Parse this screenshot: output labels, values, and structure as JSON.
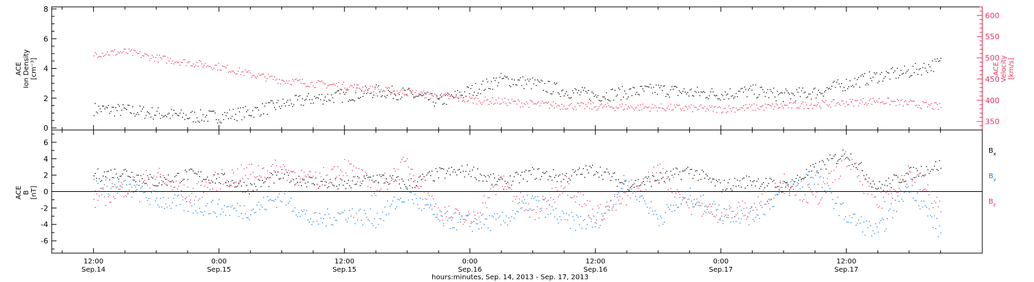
{
  "chart_data": [
    {
      "type": "scatter",
      "panel": "ion-density-velocity",
      "ylabel_left": [
        "ACE",
        "Ion Density",
        "[cm⁻³]"
      ],
      "ylabel_right": [
        "ACE",
        "Velocity",
        "[km/s]"
      ],
      "ylim_left": [
        0,
        8
      ],
      "ylim_right": [
        330,
        620
      ],
      "yticks_left": [
        "0",
        "2",
        "4",
        "6",
        "8"
      ],
      "yticks_right": [
        "350",
        "400",
        "450",
        "500",
        "550",
        "600"
      ],
      "right_axis_color": "#e8365d",
      "series": [
        {
          "color": "#000000",
          "axis": "left",
          "x_hours": [
            0,
            3,
            6,
            9,
            12,
            15,
            18,
            21,
            24,
            27,
            30,
            33,
            36,
            39,
            42,
            45,
            48,
            51,
            54,
            57,
            60,
            63,
            66,
            69,
            72,
            75,
            78,
            81
          ],
          "values": [
            1.3,
            1.2,
            1.0,
            0.8,
            0.8,
            1.1,
            1.6,
            2.0,
            2.2,
            2.5,
            2.3,
            1.8,
            2.5,
            3.3,
            3.0,
            2.5,
            2.2,
            2.4,
            2.6,
            2.4,
            2.3,
            2.5,
            2.2,
            2.4,
            3.0,
            3.5,
            3.8,
            4.4
          ]
        },
        {
          "color": "#e8365d",
          "axis": "right",
          "x_hours": [
            0,
            3,
            6,
            9,
            12,
            15,
            18,
            21,
            24,
            27,
            30,
            33,
            36,
            39,
            42,
            45,
            48,
            51,
            54,
            57,
            60,
            63,
            66,
            69,
            72,
            75,
            78,
            81
          ],
          "values": [
            510,
            515,
            500,
            490,
            480,
            462,
            448,
            440,
            435,
            425,
            420,
            410,
            402,
            398,
            392,
            388,
            386,
            385,
            384,
            382,
            380,
            384,
            387,
            391,
            395,
            400,
            393,
            385
          ]
        }
      ]
    },
    {
      "type": "scatter",
      "panel": "magnetic-field",
      "ylabel": [
        "ACE",
        "B",
        "[nT]"
      ],
      "ylim": [
        -7.5,
        7.5
      ],
      "yticks": [
        "-6",
        "-4",
        "-2",
        "0",
        "2",
        "4",
        "6"
      ],
      "zero_line": true,
      "legend": [
        {
          "name": "B",
          "sub": "x",
          "color": "#000000"
        },
        {
          "name": "B",
          "sub": "y",
          "color": "#1a7fd4"
        },
        {
          "name": "B",
          "sub": "z",
          "color": "#e8365d"
        }
      ],
      "series": [
        {
          "color": "#000000",
          "x_hours": [
            0,
            3,
            6,
            9,
            12,
            15,
            18,
            21,
            24,
            27,
            30,
            33,
            36,
            39,
            42,
            45,
            48,
            51,
            54,
            57,
            60,
            63,
            66,
            69,
            72,
            75,
            78,
            81
          ],
          "values": [
            2.0,
            2.4,
            1.2,
            2.1,
            1.6,
            0.5,
            2.0,
            1.2,
            0.8,
            1.8,
            0.9,
            2.2,
            2.6,
            1.0,
            2.3,
            1.8,
            2.8,
            0.8,
            1.6,
            2.6,
            0.7,
            1.4,
            0.6,
            2.8,
            4.8,
            0.5,
            2.2,
            3.3
          ]
        },
        {
          "color": "#1a7fd4",
          "x_hours": [
            0,
            3,
            6,
            9,
            12,
            15,
            18,
            21,
            24,
            27,
            30,
            33,
            36,
            39,
            42,
            45,
            48,
            51,
            54,
            57,
            60,
            63,
            66,
            69,
            72,
            75,
            78,
            81
          ],
          "values": [
            0.8,
            0.5,
            -1.0,
            -1.6,
            -2.0,
            -2.3,
            -0.5,
            -3.6,
            -2.6,
            -3.3,
            -0.2,
            -3.3,
            -3.8,
            -3.6,
            -1.0,
            -3.5,
            -3.8,
            1.5,
            -3.2,
            -0.6,
            -2.5,
            -3.0,
            0.2,
            2.0,
            -3.0,
            -5.0,
            1.0,
            -5.0
          ]
        },
        {
          "color": "#e8365d",
          "x_hours": [
            0,
            3,
            6,
            9,
            12,
            15,
            18,
            21,
            24,
            27,
            30,
            33,
            36,
            39,
            42,
            45,
            48,
            51,
            54,
            57,
            60,
            63,
            66,
            69,
            72,
            75,
            78,
            81
          ],
          "values": [
            -1.0,
            0.5,
            2.0,
            -0.5,
            1.5,
            2.4,
            2.8,
            1.2,
            3.2,
            0.3,
            3.5,
            -2.5,
            -3.5,
            1.5,
            -3.0,
            1.2,
            -2.8,
            -0.8,
            2.6,
            -1.5,
            -2.7,
            -2.0,
            1.5,
            -1.0,
            4.0,
            -1.5,
            2.5,
            -2.0
          ]
        }
      ]
    }
  ],
  "x_axis": {
    "range_hours": [
      -4,
      85
    ],
    "ticks": [
      {
        "h": 0,
        "time": "12:00",
        "date": "Sep.14"
      },
      {
        "h": 12,
        "time": "0:00",
        "date": "Sep.15"
      },
      {
        "h": 24,
        "time": "12:00",
        "date": "Sep.15"
      },
      {
        "h": 36,
        "time": "0:00",
        "date": "Sep.16"
      },
      {
        "h": 48,
        "time": "12:00",
        "date": "Sep.16"
      },
      {
        "h": 60,
        "time": "0:00",
        "date": "Sep.17"
      },
      {
        "h": 72,
        "time": "12:00",
        "date": "Sep.17"
      }
    ],
    "label": "hours:minutes, Sep. 14, 2013 - Sep. 17, 2013"
  }
}
